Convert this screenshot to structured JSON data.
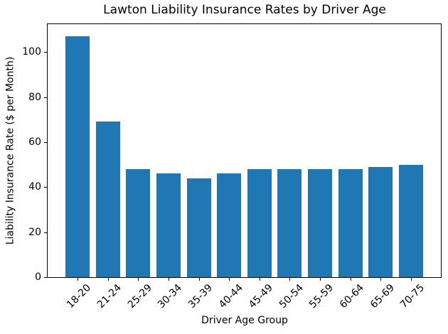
{
  "figure": {
    "background_color": "#ffffff"
  },
  "chart_data": {
    "type": "bar",
    "title": "Lawton Liability Insurance Rates by Driver Age",
    "xlabel": "Driver Age Group",
    "ylabel": "Liability Insurance Rate ($ per Month)",
    "categories": [
      "18-20",
      "21-24",
      "25-29",
      "30-34",
      "35-39",
      "40-44",
      "45-49",
      "50-54",
      "55-59",
      "60-64",
      "65-69",
      "70-75"
    ],
    "values": [
      107,
      69,
      48,
      46,
      44,
      46,
      48,
      48,
      48,
      48,
      49,
      50
    ],
    "bar_color": "#1f77b4",
    "axis_color": "#000000",
    "text_color": "#000000",
    "ylim": [
      0,
      112.35
    ],
    "yticks": [
      0,
      20,
      40,
      60,
      80,
      100
    ],
    "bar_width_fraction": 0.8,
    "x_tick_rotation_deg": 45,
    "grid": false,
    "legend_position": "none"
  }
}
